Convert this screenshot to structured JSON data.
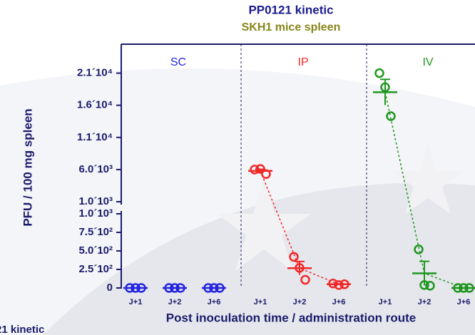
{
  "chart_data": {
    "type": "scatter",
    "title": "PP0121 kinetic",
    "subtitle": "SKH1 mice spleen",
    "xlabel": "Post inoculation time / administration route",
    "ylabel": "PFU / 100 mg spleen",
    "background_text": "21 kinetic",
    "categories": [
      "J+1",
      "J+2",
      "J+6",
      "J+1",
      "J+2",
      "J+6",
      "J+1",
      "J+2",
      "J+6"
    ],
    "y_segments": [
      {
        "ylim": [
          0,
          1000
        ],
        "yticks": [
          0,
          {
            "value": 250,
            "label": "2.5´10²"
          },
          {
            "value": 500,
            "label": "5.0´10²"
          },
          {
            "value": 750,
            "label": "7.5´10²"
          },
          {
            "value": 1000,
            "label": "1.0´10³"
          }
        ]
      },
      {
        "ylim": [
          1000,
          25500
        ],
        "yticks": [
          {
            "value": 1000,
            "label": "1.0´10³"
          },
          {
            "value": 6000,
            "label": "6.0´10³"
          },
          {
            "value": 11000,
            "label": "1.1´10⁴"
          },
          {
            "value": 16000,
            "label": "1.6´10⁴"
          },
          {
            "value": 21000,
            "label": "2.1´10⁴"
          }
        ]
      }
    ],
    "series": [
      {
        "name": "SC",
        "color": "#2424e0",
        "values": [
          [
            0,
            0,
            0
          ],
          [
            0,
            0,
            0
          ],
          [
            0,
            0,
            0
          ]
        ],
        "means": [
          0,
          0,
          0
        ],
        "errors": [
          0,
          0,
          0
        ]
      },
      {
        "name": "IP",
        "color": "#f02828",
        "values": [
          [
            6000,
            6100,
            5300
          ],
          [
            420,
            270,
            110
          ],
          [
            60,
            40,
            50
          ]
        ],
        "means": [
          5800,
          267,
          50
        ],
        "errors": [
          250,
          90,
          6
        ]
      },
      {
        "name": "IV",
        "color": "#1e961e",
        "values": [
          [
            21000,
            18800,
            14300
          ],
          [
            520,
            40,
            30
          ],
          [
            0,
            0,
            0
          ]
        ],
        "means": [
          18033,
          197,
          0
        ],
        "errors": [
          2000,
          162,
          0
        ]
      }
    ]
  }
}
